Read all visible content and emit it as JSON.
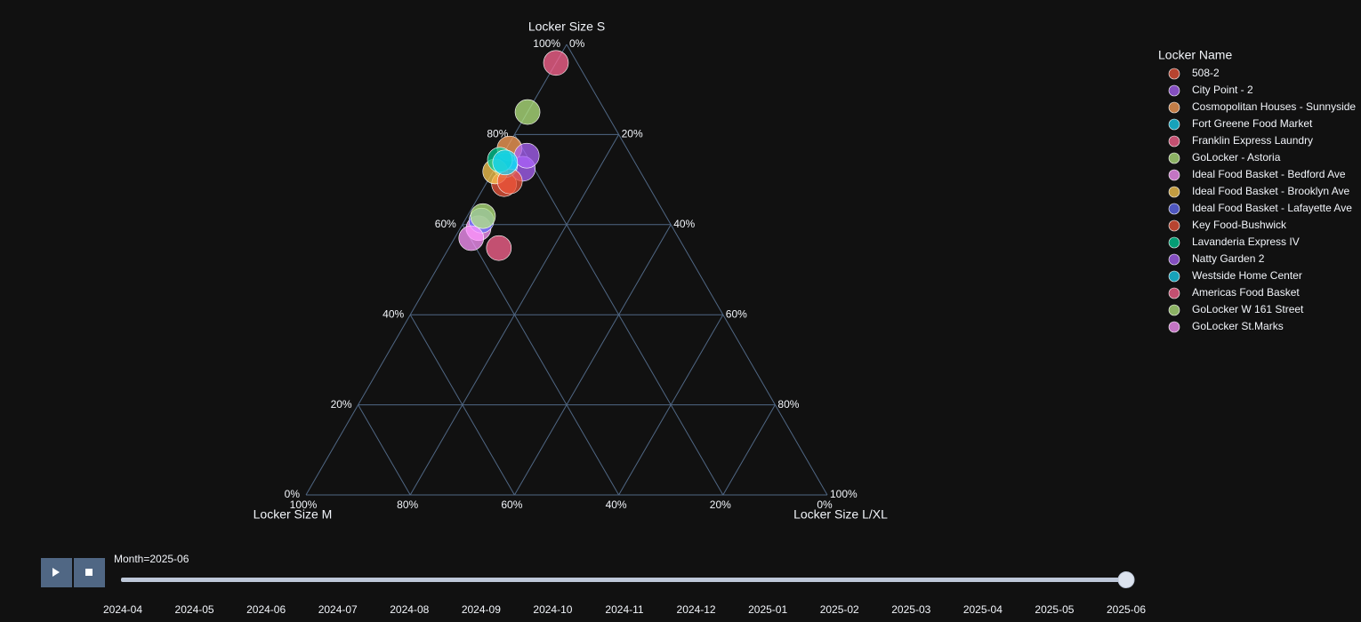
{
  "chart_data": {
    "type": "ternary",
    "aaxis": {
      "title": "Locker Size S",
      "ticks": [
        {
          "value": 0,
          "label": "0%"
        },
        {
          "value": 20,
          "label": "20%"
        },
        {
          "value": 40,
          "label": "40%"
        },
        {
          "value": 60,
          "label": "60%"
        },
        {
          "value": 80,
          "label": "80%"
        },
        {
          "value": 100,
          "label": "100%"
        }
      ]
    },
    "baxis": {
      "title": "Locker Size M",
      "ticks": [
        {
          "value": 0,
          "label": "0%"
        },
        {
          "value": 20,
          "label": "20%"
        },
        {
          "value": 40,
          "label": "40%"
        },
        {
          "value": 60,
          "label": "60%"
        },
        {
          "value": 80,
          "label": "80%"
        },
        {
          "value": 100,
          "label": "100%"
        }
      ]
    },
    "caxis": {
      "title": "Locker Size L/XL",
      "ticks": [
        {
          "value": 0,
          "label": "0%"
        },
        {
          "value": 20,
          "label": "20%"
        },
        {
          "value": 40,
          "label": "40%"
        },
        {
          "value": 60,
          "label": "60%"
        },
        {
          "value": 80,
          "label": "80%"
        },
        {
          "value": 100,
          "label": "100%"
        }
      ]
    },
    "legend_title": "Locker Name",
    "series": [
      {
        "name": "508-2",
        "color": "#EF553B",
        "a": [
          69.0
        ],
        "b": [
          27.5
        ],
        "c": [
          3.5
        ]
      },
      {
        "name": "City Point - 2",
        "color": "#AB63FA",
        "a": [
          72.4
        ],
        "b": [
          22.2
        ],
        "c": [
          5.4
        ]
      },
      {
        "name": "Cosmopolitan Houses - Sunnyside",
        "color": "#FFA15A",
        "a": [
          76.9
        ],
        "b": [
          22.5
        ],
        "c": [
          0.6
        ]
      },
      {
        "name": "Fort Greene Food Market",
        "color": "#19D3F3",
        "a": [
          73.2
        ],
        "b": [
          25.2
        ],
        "c": [
          1.6
        ]
      },
      {
        "name": "Franklin Express Laundry",
        "color": "#FF6692",
        "a": [
          95.9
        ],
        "b": [
          4.1
        ],
        "c": [
          0
        ]
      },
      {
        "name": "GoLocker - Astoria",
        "color": "#B6E880",
        "a": [
          85.0
        ],
        "b": [
          15.0
        ],
        "c": [
          0
        ]
      },
      {
        "name": "Ideal Food Basket - Bedford Ave",
        "color": "#FF97FF",
        "a": [
          59.2
        ],
        "b": [
          37.3
        ],
        "c": [
          3.5
        ]
      },
      {
        "name": "Ideal Food Basket - Brooklyn Ave",
        "color": "#FECB52",
        "a": [
          71.8
        ],
        "b": [
          27.8
        ],
        "c": [
          0.4
        ]
      },
      {
        "name": "Ideal Food Basket - Lafayette Ave",
        "color": "#636EFA",
        "a": [
          60.9
        ],
        "b": [
          35.9
        ],
        "c": [
          3.2
        ]
      },
      {
        "name": "Key Food-Bushwick",
        "color": "#EF553B",
        "a": [
          69.6
        ],
        "b": [
          26.1
        ],
        "c": [
          4.3
        ]
      },
      {
        "name": "Lavanderia Express IV",
        "color": "#00CC96",
        "a": [
          74.4
        ],
        "b": [
          25.6
        ],
        "c": [
          0
        ]
      },
      {
        "name": "Natty Garden 2",
        "color": "#AB63FA",
        "a": [
          75.3
        ],
        "b": [
          20.0
        ],
        "c": [
          4.7
        ]
      },
      {
        "name": "Westside Home Center",
        "color": "#19D3F3",
        "a": [
          73.8
        ],
        "b": [
          24.9
        ],
        "c": [
          1.3
        ]
      },
      {
        "name": "Americas Food Basket",
        "color": "#FF6692",
        "a": [
          54.8
        ],
        "b": [
          35.6
        ],
        "c": [
          9.6
        ]
      },
      {
        "name": "GoLocker W 161 Street",
        "color": "#B6E880",
        "a": [
          61.9
        ],
        "b": [
          35.1
        ],
        "c": [
          3.0
        ]
      },
      {
        "name": "GoLocker St.Marks",
        "color": "#FF97FF",
        "a": [
          57.0
        ],
        "b": [
          39.8
        ],
        "c": [
          3.2
        ]
      }
    ],
    "slider": {
      "current_label": "Month=2025-06",
      "active": 14,
      "steps": [
        "2024-04",
        "2024-05",
        "2024-06",
        "2024-07",
        "2024-08",
        "2024-09",
        "2024-10",
        "2024-11",
        "2024-12",
        "2025-01",
        "2025-02",
        "2025-03",
        "2025-04",
        "2025-05",
        "2025-06"
      ]
    }
  }
}
